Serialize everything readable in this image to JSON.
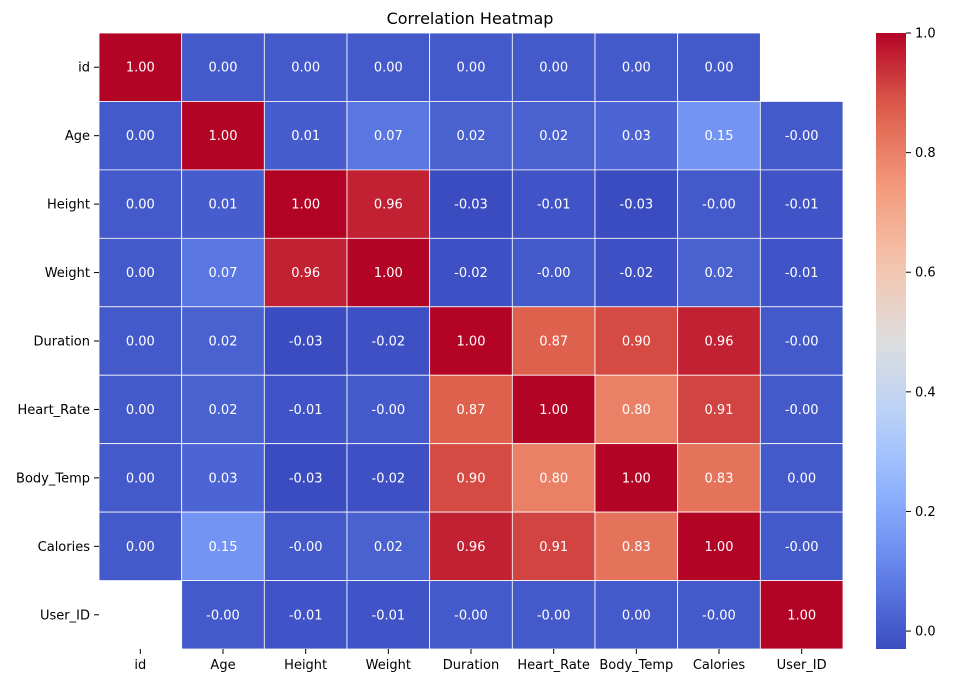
{
  "chart_data": {
    "type": "heatmap",
    "title": "Correlation Heatmap",
    "x_labels": [
      "id",
      "Age",
      "Height",
      "Weight",
      "Duration",
      "Heart_Rate",
      "Body_Temp",
      "Calories",
      "User_ID"
    ],
    "y_labels": [
      "id",
      "Age",
      "Height",
      "Weight",
      "Duration",
      "Heart_Rate",
      "Body_Temp",
      "Calories",
      "User_ID"
    ],
    "values": [
      [
        1.0,
        0.0,
        0.0,
        0.0,
        0.0,
        0.0,
        0.0,
        0.0,
        null
      ],
      [
        0.0,
        1.0,
        0.01,
        0.07,
        0.02,
        0.02,
        0.03,
        0.15,
        -0.0
      ],
      [
        0.0,
        0.01,
        1.0,
        0.96,
        -0.03,
        -0.01,
        -0.03,
        -0.0,
        -0.01
      ],
      [
        0.0,
        0.07,
        0.96,
        1.0,
        -0.02,
        -0.0,
        -0.02,
        0.02,
        -0.01
      ],
      [
        0.0,
        0.02,
        -0.03,
        -0.02,
        1.0,
        0.87,
        0.9,
        0.96,
        -0.0
      ],
      [
        0.0,
        0.02,
        -0.01,
        -0.0,
        0.87,
        1.0,
        0.8,
        0.91,
        -0.0
      ],
      [
        0.0,
        0.03,
        -0.03,
        -0.02,
        0.9,
        0.8,
        1.0,
        0.83,
        0.0
      ],
      [
        0.0,
        0.15,
        -0.0,
        0.02,
        0.96,
        0.91,
        0.83,
        1.0,
        -0.0
      ],
      [
        null,
        -0.0,
        -0.01,
        -0.01,
        -0.0,
        -0.0,
        0.0,
        -0.0,
        1.0
      ]
    ],
    "cell_labels": [
      [
        "1.00",
        "0.00",
        "0.00",
        "0.00",
        "0.00",
        "0.00",
        "0.00",
        "0.00",
        ""
      ],
      [
        "0.00",
        "1.00",
        "0.01",
        "0.07",
        "0.02",
        "0.02",
        "0.03",
        "0.15",
        "-0.00"
      ],
      [
        "0.00",
        "0.01",
        "1.00",
        "0.96",
        "-0.03",
        "-0.01",
        "-0.03",
        "-0.00",
        "-0.01"
      ],
      [
        "0.00",
        "0.07",
        "0.96",
        "1.00",
        "-0.02",
        "-0.00",
        "-0.02",
        "0.02",
        "-0.01"
      ],
      [
        "0.00",
        "0.02",
        "-0.03",
        "-0.02",
        "1.00",
        "0.87",
        "0.90",
        "0.96",
        "-0.00"
      ],
      [
        "0.00",
        "0.02",
        "-0.01",
        "-0.00",
        "0.87",
        "1.00",
        "0.80",
        "0.91",
        "-0.00"
      ],
      [
        "0.00",
        "0.03",
        "-0.03",
        "-0.02",
        "0.90",
        "0.80",
        "1.00",
        "0.83",
        "0.00"
      ],
      [
        "0.00",
        "0.15",
        "-0.00",
        "0.02",
        "0.96",
        "0.91",
        "0.83",
        "1.00",
        "-0.00"
      ],
      [
        "",
        "-0.00",
        "-0.01",
        "-0.01",
        "-0.00",
        "-0.00",
        "0.00",
        "-0.00",
        "1.00"
      ]
    ],
    "colormap": "coolwarm",
    "vmin": -0.03,
    "vmax": 1.0,
    "colorbar_ticks": [
      0.0,
      0.2,
      0.4,
      0.6,
      0.8,
      1.0
    ],
    "colorbar_tick_labels": [
      "0.0",
      "0.2",
      "0.4",
      "0.6",
      "0.8",
      "1.0"
    ],
    "xlabel": "",
    "ylabel": "",
    "grid_line_color": "#ffffff",
    "legend": "colorbar-right"
  }
}
